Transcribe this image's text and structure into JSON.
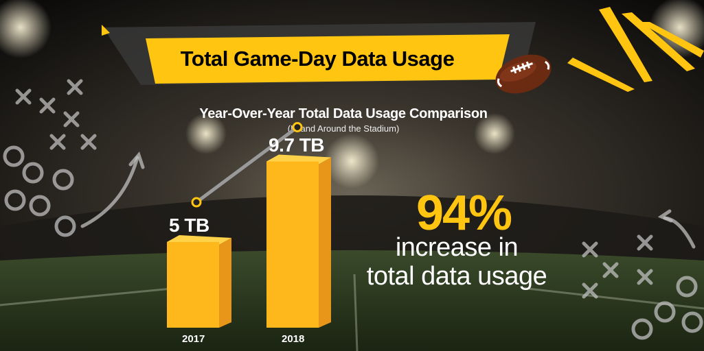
{
  "title": "Total Game-Day Data Usage",
  "subtitle": "Year-Over-Year Total Data Usage Comparison",
  "subtitle_note": "(In and Around the Stadium)",
  "highlight": {
    "percent": "94%",
    "line1": "increase in",
    "line2": "total data usage"
  },
  "colors": {
    "accent": "#ffc510",
    "bar_front": "#ffb81c",
    "bar_side": "#e8961a",
    "text": "#ffffff"
  },
  "chart_data": {
    "type": "bar",
    "title": "Year-Over-Year Total Data Usage Comparison",
    "categories": [
      "2017",
      "2018"
    ],
    "values": [
      5,
      9.7
    ],
    "unit": "TB",
    "data_labels": [
      "5 TB",
      "9.7 TB"
    ],
    "xlabel": "",
    "ylabel": "",
    "ylim": [
      0,
      10
    ]
  }
}
